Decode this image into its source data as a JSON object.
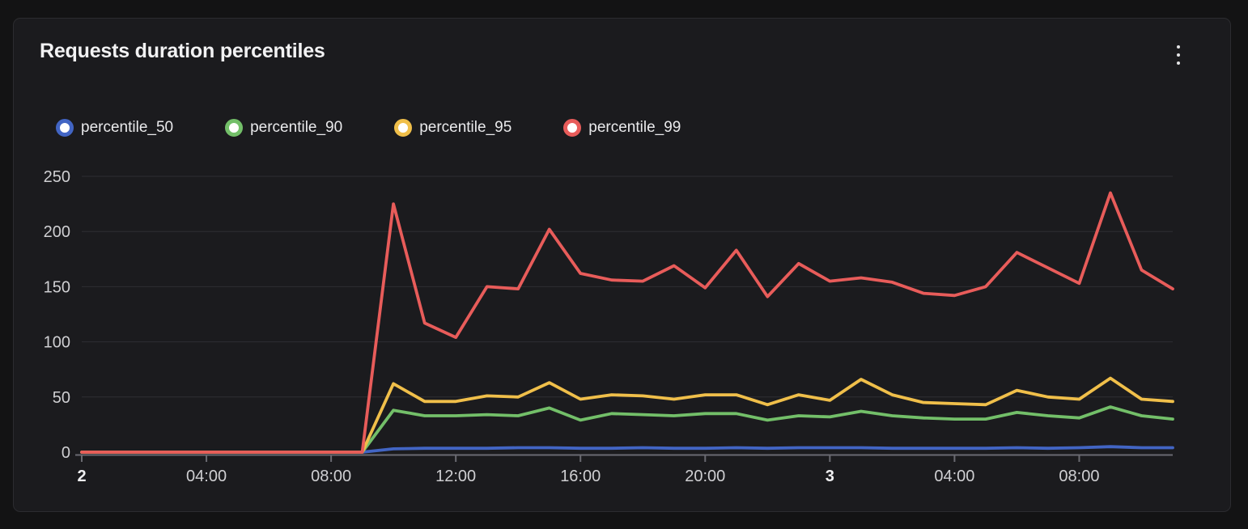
{
  "panel": {
    "title": "Requests duration percentiles",
    "menu_icon": "kebab-vertical-icon"
  },
  "colors": {
    "page_background": "#131314",
    "panel_background": "#1b1b1e",
    "panel_border": "#2c2c30",
    "grid": "#2e2e33",
    "axis": "#6a6a71",
    "text_primary": "#f2f2f3",
    "text_secondary": "#cfcfd2"
  },
  "legend": {
    "items": [
      {
        "label": "percentile_50",
        "color": "#4265c4"
      },
      {
        "label": "percentile_90",
        "color": "#73bf69"
      },
      {
        "label": "percentile_95",
        "color": "#f0bf4a"
      },
      {
        "label": "percentile_99",
        "color": "#e85c5a"
      }
    ]
  },
  "chart_data": {
    "type": "line",
    "title": "Requests duration percentiles",
    "xlabel": "",
    "ylabel": "",
    "x_unit": "hours since day 2 00:00",
    "x": [
      0,
      1,
      2,
      3,
      4,
      5,
      6,
      7,
      8,
      9,
      10,
      11,
      12,
      13,
      14,
      15,
      16,
      17,
      18,
      19,
      20,
      21,
      22,
      23,
      24,
      25,
      26,
      27,
      28,
      29,
      30,
      31,
      32,
      33,
      34,
      35
    ],
    "series": [
      {
        "name": "percentile_50",
        "color": "#4265c4",
        "values": [
          0,
          0,
          0,
          0,
          0,
          0,
          0,
          0,
          0,
          0,
          3,
          3.5,
          3.5,
          3.5,
          4,
          4,
          3.5,
          3.5,
          4,
          3.5,
          3.5,
          4,
          3.5,
          4,
          4,
          4,
          3.5,
          3.5,
          3.5,
          3.5,
          4,
          3.5,
          4,
          5,
          4,
          4
        ]
      },
      {
        "name": "percentile_90",
        "color": "#73bf69",
        "values": [
          0,
          0,
          0,
          0,
          0,
          0,
          0,
          0,
          0,
          0,
          38,
          33,
          33,
          34,
          33,
          40,
          29,
          35,
          34,
          33,
          35,
          35,
          29,
          33,
          32,
          37,
          33,
          31,
          30,
          30,
          36,
          33,
          31,
          41,
          33,
          30
        ]
      },
      {
        "name": "percentile_95",
        "color": "#f0bf4a",
        "values": [
          0,
          0,
          0,
          0,
          0,
          0,
          0,
          0,
          0,
          0,
          62,
          46,
          46,
          51,
          50,
          63,
          48,
          52,
          51,
          48,
          52,
          52,
          43,
          52,
          47,
          66,
          52,
          45,
          44,
          43,
          56,
          50,
          48,
          67,
          48,
          46
        ]
      },
      {
        "name": "percentile_99",
        "color": "#e85c5a",
        "values": [
          0,
          0,
          0,
          0,
          0,
          0,
          0,
          0,
          0,
          0,
          225,
          117,
          104,
          150,
          148,
          202,
          162,
          156,
          155,
          169,
          149,
          183,
          141,
          171,
          155,
          158,
          154,
          144,
          142,
          150,
          181,
          167,
          153,
          235,
          165,
          148
        ]
      }
    ],
    "ylim": [
      0,
      260
    ],
    "yticks": [
      0,
      50,
      100,
      150,
      200,
      250
    ],
    "xticks": {
      "positions": [
        0,
        4,
        8,
        12,
        16,
        20,
        24,
        28,
        32
      ],
      "labels": [
        "2",
        "04:00",
        "08:00",
        "12:00",
        "16:00",
        "20:00",
        "3",
        "04:00",
        "08:00"
      ],
      "bold": [
        true,
        false,
        false,
        false,
        false,
        false,
        true,
        false,
        false
      ]
    },
    "grid": "horizontal",
    "legend_position": "top"
  }
}
